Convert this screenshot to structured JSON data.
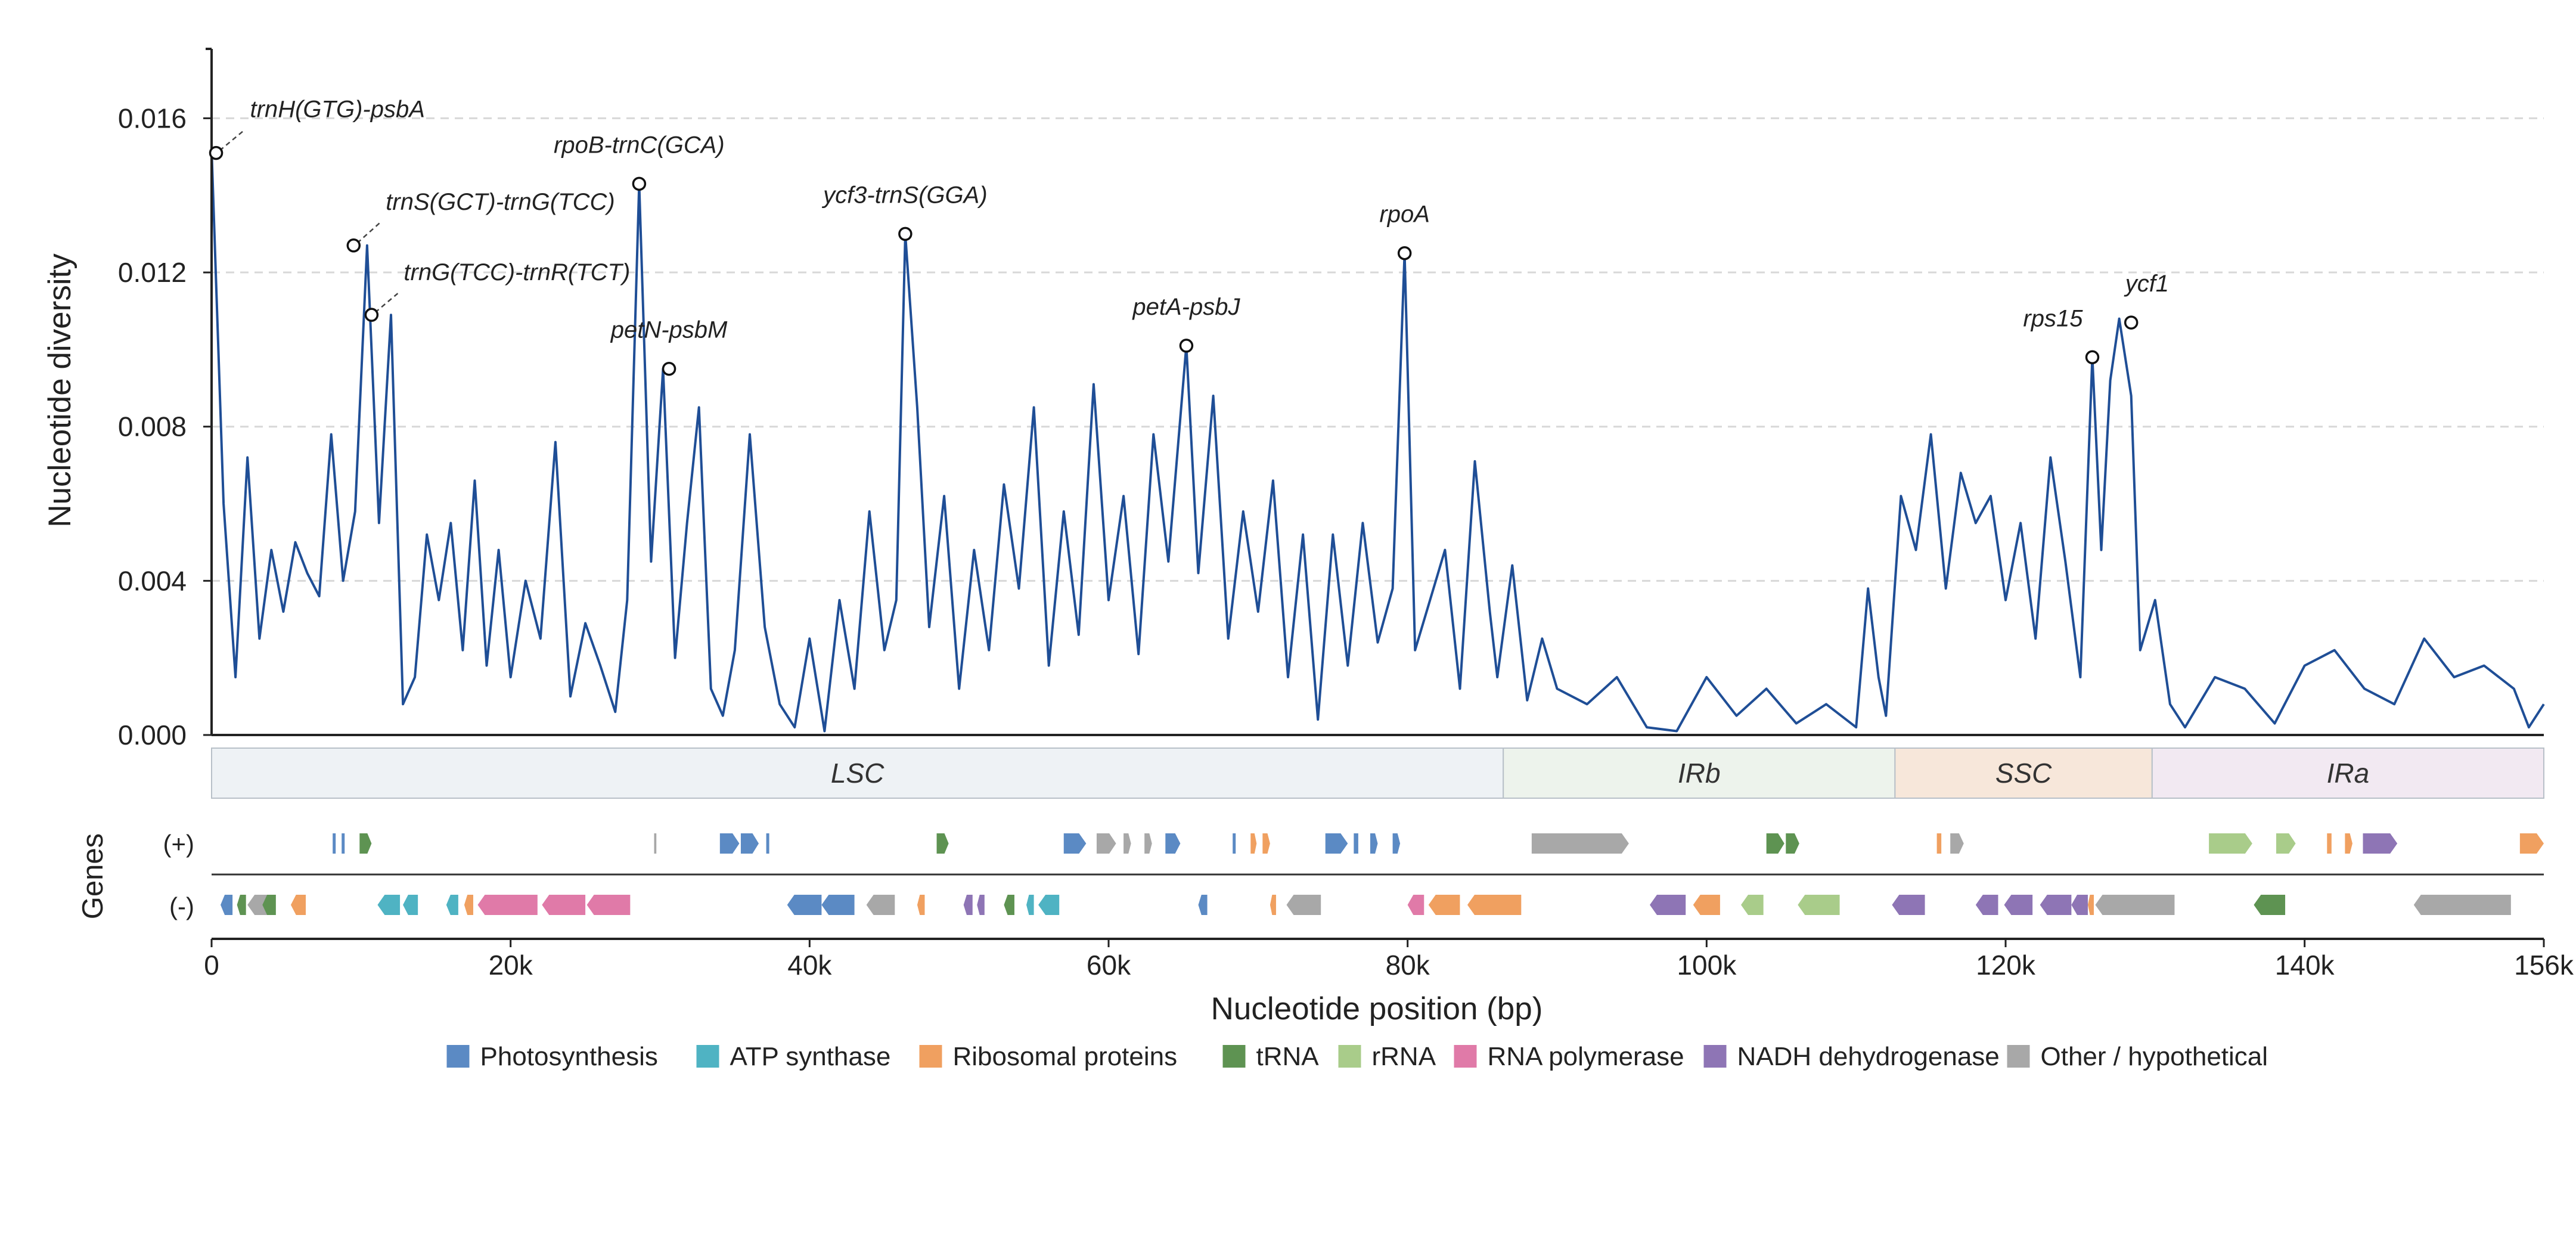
{
  "chart_data": {
    "type": "line",
    "ylabel": "Nucleotide diversity",
    "xlabel": "Nucleotide position (bp)",
    "genes_label": "Genes",
    "strand_labels": {
      "plus": "(+)",
      "minus": "(-)"
    },
    "xlim": [
      0,
      156000
    ],
    "ylim": [
      0,
      0.0178
    ],
    "yticks": [
      0.0,
      0.004,
      0.008,
      0.012,
      0.016
    ],
    "ytick_labels": [
      "0.000",
      "0.004",
      "0.008",
      "0.012",
      "0.016"
    ],
    "xticks": [
      0,
      20000,
      40000,
      60000,
      80000,
      100000,
      120000,
      140000,
      156000
    ],
    "xtick_labels": [
      "0",
      "20k",
      "40k",
      "60k",
      "80k",
      "100k",
      "120k",
      "140k",
      "156k"
    ],
    "grid": "horizontal dashed",
    "colors": {
      "line": "#1f4e96",
      "axis": "#222222",
      "Photosynthesis": "#5b8ac4",
      "ATP synthase": "#4fb3c3",
      "Ribosomal proteins": "#f0a060",
      "tRNA": "#5e9352",
      "rRNA": "#a9cc8a",
      "RNA polymerase": "#e07aa8",
      "NADH dehydrogenase": "#8e75b5",
      "Other / hypothetical": "#a8a8a8"
    },
    "series": [
      {
        "x": [
          0,
          800,
          1600,
          2400,
          3200,
          4000,
          4800,
          5600,
          6400,
          7200,
          8000,
          8800,
          9600,
          10400,
          11200,
          12000,
          12800,
          13600,
          14400,
          15200,
          16000,
          16800,
          17600,
          18400,
          19200,
          20000,
          21000,
          22000,
          23000,
          24000,
          25000,
          26000,
          27000,
          27800,
          28600,
          29400,
          30200,
          31000,
          31800,
          32600,
          33400,
          34200,
          35000,
          36000,
          37000,
          38000,
          39000,
          40000,
          41000,
          42000,
          43000,
          44000,
          45000,
          45800,
          46400,
          47200,
          48000,
          49000,
          50000,
          51000,
          52000,
          53000,
          54000,
          55000,
          56000,
          57000,
          58000,
          59000,
          60000,
          61000,
          62000,
          63000,
          64000,
          65200,
          66000,
          67000,
          68000,
          69000,
          70000,
          71000,
          72000,
          73000,
          74000,
          75000,
          76000,
          77000,
          78000,
          79000,
          79800,
          80500,
          81500,
          82500,
          83500,
          84500,
          85500,
          86000,
          87000,
          88000,
          89000,
          90000,
          92000,
          94000,
          96000,
          98000,
          100000,
          102000,
          104000,
          106000,
          108000,
          110000,
          110800,
          111500,
          112000,
          113000,
          114000,
          115000,
          116000,
          117000,
          118000,
          119000,
          120000,
          121000,
          122000,
          123000,
          124000,
          125000,
          125800,
          126400,
          127000,
          127600,
          128400,
          129000,
          130000,
          131000,
          132000,
          134000,
          136000,
          138000,
          140000,
          142000,
          144000,
          146000,
          148000,
          150000,
          152000,
          154000,
          155000,
          156000
        ],
        "values": [
          0.0152,
          0.006,
          0.0015,
          0.0072,
          0.0025,
          0.0048,
          0.0032,
          0.005,
          0.0042,
          0.0036,
          0.0078,
          0.004,
          0.0058,
          0.0127,
          0.0055,
          0.0109,
          0.0008,
          0.0015,
          0.0052,
          0.0035,
          0.0055,
          0.0022,
          0.0066,
          0.0018,
          0.0048,
          0.0015,
          0.004,
          0.0025,
          0.0076,
          0.001,
          0.0029,
          0.0018,
          0.0006,
          0.0035,
          0.0143,
          0.0045,
          0.0095,
          0.002,
          0.0055,
          0.0085,
          0.0012,
          0.0005,
          0.0022,
          0.0078,
          0.0028,
          0.0008,
          0.0002,
          0.0025,
          0.0001,
          0.0035,
          0.0012,
          0.0058,
          0.0022,
          0.0035,
          0.013,
          0.0085,
          0.0028,
          0.0062,
          0.0012,
          0.0048,
          0.0022,
          0.0065,
          0.0038,
          0.0085,
          0.0018,
          0.0058,
          0.0026,
          0.0091,
          0.0035,
          0.0062,
          0.0021,
          0.0078,
          0.0045,
          0.0101,
          0.0042,
          0.0088,
          0.0025,
          0.0058,
          0.0032,
          0.0066,
          0.0015,
          0.0052,
          0.0004,
          0.0052,
          0.0018,
          0.0055,
          0.0024,
          0.0038,
          0.0125,
          0.0022,
          0.0035,
          0.0048,
          0.0012,
          0.0071,
          0.0032,
          0.0015,
          0.0044,
          0.0009,
          0.0025,
          0.0012,
          0.0008,
          0.0015,
          0.0002,
          0.0001,
          0.0015,
          0.0005,
          0.0012,
          0.0003,
          0.0008,
          0.0002,
          0.0038,
          0.0015,
          0.0005,
          0.0062,
          0.0048,
          0.0078,
          0.0038,
          0.0068,
          0.0055,
          0.0062,
          0.0035,
          0.0055,
          0.0025,
          0.0072,
          0.0045,
          0.0015,
          0.0098,
          0.0048,
          0.0092,
          0.0108,
          0.0088,
          0.0022,
          0.0035,
          0.0008,
          0.0002,
          0.0015,
          0.0012,
          0.0003,
          0.0018,
          0.0022,
          0.0012,
          0.0008,
          0.0025,
          0.0015,
          0.0018,
          0.0012,
          0.0002,
          0.0008
        ]
      }
    ],
    "annotations": [
      {
        "label": "trnH(GTG)-psbA",
        "x": 300,
        "y": 0.0151
      },
      {
        "label": "trnS(GCT)-trnG(TCC)",
        "x": 9500,
        "y": 0.0127
      },
      {
        "label": "trnG(TCC)-trnR(TCT)",
        "x": 10700,
        "y": 0.0109
      },
      {
        "label": "rpoB-trnC(GCA)",
        "x": 28600,
        "y": 0.0143
      },
      {
        "label": "petN-psbM",
        "x": 30600,
        "y": 0.0095
      },
      {
        "label": "ycf3-trnS(GGA)",
        "x": 46400,
        "y": 0.013
      },
      {
        "label": "petA-psbJ",
        "x": 65200,
        "y": 0.0101
      },
      {
        "label": "rpoA",
        "x": 79800,
        "y": 0.0125
      },
      {
        "label": "rps15",
        "x": 125800,
        "y": 0.0098
      },
      {
        "label": "ycf1",
        "x": 128400,
        "y": 0.0107
      }
    ],
    "regions": [
      {
        "name": "LSC",
        "start": 0,
        "end": 86400,
        "color": "#eef2f5"
      },
      {
        "name": "IRb",
        "start": 86400,
        "end": 112600,
        "color": "#edf3ec"
      },
      {
        "name": "SSC",
        "start": 112600,
        "end": 129800,
        "color": "#f7e7da"
      },
      {
        "name": "IRa",
        "start": 129800,
        "end": 156000,
        "color": "#f2e9f2"
      }
    ],
    "genes": [
      {
        "strand": "+",
        "cat": "Photosynthesis",
        "start": 8100,
        "end": 8300
      },
      {
        "strand": "+",
        "cat": "Photosynthesis",
        "start": 8700,
        "end": 8900
      },
      {
        "strand": "+",
        "cat": "tRNA",
        "start": 9900,
        "end": 10700
      },
      {
        "strand": "+",
        "cat": "Other / hypothetical",
        "start": 29600,
        "end": 29750
      },
      {
        "strand": "+",
        "cat": "Photosynthesis",
        "start": 34000,
        "end": 35300
      },
      {
        "strand": "+",
        "cat": "Photosynthesis",
        "start": 35400,
        "end": 36600
      },
      {
        "strand": "+",
        "cat": "Photosynthesis",
        "start": 37100,
        "end": 37300
      },
      {
        "strand": "+",
        "cat": "tRNA",
        "start": 48500,
        "end": 49300
      },
      {
        "strand": "+",
        "cat": "Photosynthesis",
        "start": 57000,
        "end": 58500
      },
      {
        "strand": "+",
        "cat": "Other / hypothetical",
        "start": 59200,
        "end": 60500
      },
      {
        "strand": "+",
        "cat": "Other / hypothetical",
        "start": 61000,
        "end": 61500
      },
      {
        "strand": "+",
        "cat": "Other / hypothetical",
        "start": 62400,
        "end": 62900
      },
      {
        "strand": "+",
        "cat": "Photosynthesis",
        "start": 63800,
        "end": 64800
      },
      {
        "strand": "+",
        "cat": "Photosynthesis",
        "start": 68300,
        "end": 68500
      },
      {
        "strand": "+",
        "cat": "Ribosomal proteins",
        "start": 69500,
        "end": 69900
      },
      {
        "strand": "+",
        "cat": "Ribosomal proteins",
        "start": 70300,
        "end": 70800
      },
      {
        "strand": "+",
        "cat": "Photosynthesis",
        "start": 74500,
        "end": 76000
      },
      {
        "strand": "+",
        "cat": "Photosynthesis",
        "start": 76400,
        "end": 76700
      },
      {
        "strand": "+",
        "cat": "Photosynthesis",
        "start": 77500,
        "end": 78000
      },
      {
        "strand": "+",
        "cat": "Photosynthesis",
        "start": 79000,
        "end": 79500
      },
      {
        "strand": "+",
        "cat": "Other / hypothetical",
        "start": 88300,
        "end": 94800
      },
      {
        "strand": "+",
        "cat": "tRNA",
        "start": 104000,
        "end": 105200
      },
      {
        "strand": "+",
        "cat": "tRNA",
        "start": 105300,
        "end": 106200
      },
      {
        "strand": "+",
        "cat": "Ribosomal proteins",
        "start": 115400,
        "end": 115700
      },
      {
        "strand": "+",
        "cat": "Other / hypothetical",
        "start": 116300,
        "end": 117200
      },
      {
        "strand": "+",
        "cat": "rRNA",
        "start": 133600,
        "end": 136500
      },
      {
        "strand": "+",
        "cat": "rRNA",
        "start": 138100,
        "end": 139400
      },
      {
        "strand": "+",
        "cat": "Ribosomal proteins",
        "start": 141500,
        "end": 141800
      },
      {
        "strand": "+",
        "cat": "Ribosomal proteins",
        "start": 142700,
        "end": 143200
      },
      {
        "strand": "+",
        "cat": "NADH dehydrogenase",
        "start": 143900,
        "end": 146200
      },
      {
        "strand": "+",
        "cat": "Ribosomal proteins",
        "start": 154400,
        "end": 156000
      },
      {
        "strand": "-",
        "cat": "Photosynthesis",
        "start": 600,
        "end": 1400
      },
      {
        "strand": "-",
        "cat": "tRNA",
        "start": 1700,
        "end": 2300
      },
      {
        "strand": "-",
        "cat": "Other / hypothetical",
        "start": 2400,
        "end": 4100
      },
      {
        "strand": "-",
        "cat": "tRNA",
        "start": 3400,
        "end": 4300
      },
      {
        "strand": "-",
        "cat": "Ribosomal proteins",
        "start": 5300,
        "end": 6300
      },
      {
        "strand": "-",
        "cat": "ATP synthase",
        "start": 11100,
        "end": 12600
      },
      {
        "strand": "-",
        "cat": "ATP synthase",
        "start": 12800,
        "end": 13800
      },
      {
        "strand": "-",
        "cat": "ATP synthase",
        "start": 15700,
        "end": 16500
      },
      {
        "strand": "-",
        "cat": "Ribosomal proteins",
        "start": 16900,
        "end": 17500
      },
      {
        "strand": "-",
        "cat": "RNA polymerase",
        "start": 17800,
        "end": 21800
      },
      {
        "strand": "-",
        "cat": "RNA polymerase",
        "start": 22100,
        "end": 25000
      },
      {
        "strand": "-",
        "cat": "RNA polymerase",
        "start": 25100,
        "end": 28000
      },
      {
        "strand": "-",
        "cat": "Photosynthesis",
        "start": 38500,
        "end": 40800
      },
      {
        "strand": "-",
        "cat": "Photosynthesis",
        "start": 40800,
        "end": 43000
      },
      {
        "strand": "-",
        "cat": "Other / hypothetical",
        "start": 43800,
        "end": 45700
      },
      {
        "strand": "-",
        "cat": "Ribosomal proteins",
        "start": 47200,
        "end": 47700
      },
      {
        "strand": "-",
        "cat": "NADH dehydrogenase",
        "start": 50300,
        "end": 50900
      },
      {
        "strand": "-",
        "cat": "NADH dehydrogenase",
        "start": 51200,
        "end": 51700
      },
      {
        "strand": "-",
        "cat": "tRNA",
        "start": 53000,
        "end": 53700
      },
      {
        "strand": "-",
        "cat": "ATP synthase",
        "start": 54500,
        "end": 55000
      },
      {
        "strand": "-",
        "cat": "ATP synthase",
        "start": 55300,
        "end": 56700
      },
      {
        "strand": "-",
        "cat": "Photosynthesis",
        "start": 66000,
        "end": 66600
      },
      {
        "strand": "-",
        "cat": "Ribosomal proteins",
        "start": 70800,
        "end": 71200
      },
      {
        "strand": "-",
        "cat": "Other / hypothetical",
        "start": 71900,
        "end": 74200
      },
      {
        "strand": "-",
        "cat": "RNA polymerase",
        "start": 80000,
        "end": 81100
      },
      {
        "strand": "-",
        "cat": "Ribosomal proteins",
        "start": 81400,
        "end": 83500
      },
      {
        "strand": "-",
        "cat": "Ribosomal proteins",
        "start": 84000,
        "end": 87600
      },
      {
        "strand": "-",
        "cat": "NADH dehydrogenase",
        "start": 96200,
        "end": 98600
      },
      {
        "strand": "-",
        "cat": "Ribosomal proteins",
        "start": 99100,
        "end": 100900
      },
      {
        "strand": "-",
        "cat": "rRNA",
        "start": 102300,
        "end": 103800
      },
      {
        "strand": "-",
        "cat": "rRNA",
        "start": 106100,
        "end": 108900
      },
      {
        "strand": "-",
        "cat": "NADH dehydrogenase",
        "start": 112400,
        "end": 114600
      },
      {
        "strand": "-",
        "cat": "NADH dehydrogenase",
        "start": 118000,
        "end": 119500
      },
      {
        "strand": "-",
        "cat": "NADH dehydrogenase",
        "start": 119900,
        "end": 121800
      },
      {
        "strand": "-",
        "cat": "NADH dehydrogenase",
        "start": 122300,
        "end": 124400
      },
      {
        "strand": "-",
        "cat": "NADH dehydrogenase",
        "start": 124400,
        "end": 125500
      },
      {
        "strand": "-",
        "cat": "Ribosomal proteins",
        "start": 125500,
        "end": 125900
      },
      {
        "strand": "-",
        "cat": "Other / hypothetical",
        "start": 126000,
        "end": 131300
      },
      {
        "strand": "-",
        "cat": "tRNA",
        "start": 136600,
        "end": 138700
      },
      {
        "strand": "-",
        "cat": "Other / hypothetical",
        "start": 147300,
        "end": 153800
      }
    ]
  },
  "legend": {
    "items": [
      {
        "label": "Photosynthesis",
        "color": "#5b8ac4"
      },
      {
        "label": "ATP synthase",
        "color": "#4fb3c3"
      },
      {
        "label": "Ribosomal proteins",
        "color": "#f0a060"
      },
      {
        "label": "tRNA",
        "color": "#5e9352"
      },
      {
        "label": "rRNA",
        "color": "#a9cc8a"
      },
      {
        "label": "RNA polymerase",
        "color": "#e07aa8"
      },
      {
        "label": "NADH dehydrogenase",
        "color": "#8e75b5"
      },
      {
        "label": "Other / hypothetical",
        "color": "#a8a8a8"
      }
    ],
    "placement": "bottom-center"
  }
}
